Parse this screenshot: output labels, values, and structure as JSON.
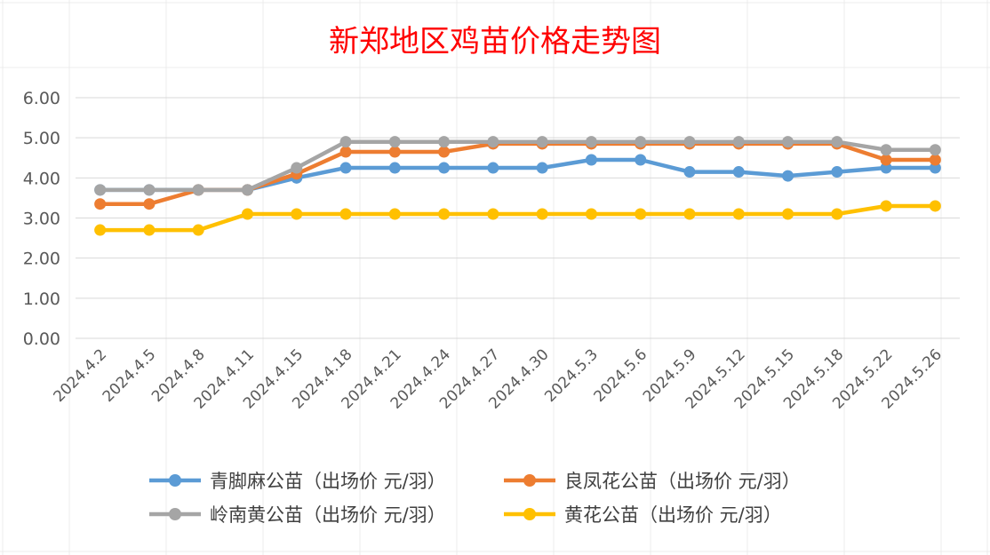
{
  "chart_data": {
    "type": "line",
    "title": "新郑地区鸡苗价格走势图",
    "xlabel": "",
    "ylabel": "",
    "ylim": [
      0,
      6
    ],
    "y_ticks": [
      "0.00",
      "1.00",
      "2.00",
      "3.00",
      "4.00",
      "5.00",
      "6.00"
    ],
    "grid": true,
    "legend_position": "bottom",
    "categories": [
      "2024.4.2",
      "2024.4.5",
      "2024.4.8",
      "2024.4.11",
      "2024.4.15",
      "2024.4.18",
      "2024.4.21",
      "2024.4.24",
      "2024.4.27",
      "2024.4.30",
      "2024.5.3",
      "2024.5.6",
      "2024.5.9",
      "2024.5.12",
      "2024.5.15",
      "2024.5.18",
      "2024.5.22",
      "2024.5.26"
    ],
    "series": [
      {
        "name": "青脚麻公苗（出场价 元/羽）",
        "color": "#5b9bd5",
        "values": [
          3.7,
          3.7,
          3.7,
          3.7,
          4.0,
          4.25,
          4.25,
          4.25,
          4.25,
          4.25,
          4.45,
          4.45,
          4.15,
          4.15,
          4.05,
          4.15,
          4.25,
          4.25
        ]
      },
      {
        "name": "良凤花公苗（出场价 元/羽）",
        "color": "#ed7d31",
        "values": [
          3.35,
          3.35,
          3.7,
          3.7,
          4.1,
          4.65,
          4.65,
          4.65,
          4.85,
          4.85,
          4.85,
          4.85,
          4.85,
          4.85,
          4.85,
          4.85,
          4.45,
          4.45
        ]
      },
      {
        "name": "岭南黄公苗（出场价 元/羽）",
        "color": "#a5a5a5",
        "values": [
          3.7,
          3.7,
          3.7,
          3.7,
          4.25,
          4.9,
          4.9,
          4.9,
          4.9,
          4.9,
          4.9,
          4.9,
          4.9,
          4.9,
          4.9,
          4.9,
          4.7,
          4.7
        ]
      },
      {
        "name": "黄花公苗（出场价 元/羽）",
        "color": "#ffc000",
        "values": [
          2.7,
          2.7,
          2.7,
          3.1,
          3.1,
          3.1,
          3.1,
          3.1,
          3.1,
          3.1,
          3.1,
          3.1,
          3.1,
          3.1,
          3.1,
          3.1,
          3.3,
          3.3
        ]
      }
    ],
    "colors": {
      "gridline": "#d9d9d9",
      "title": "#ff0000",
      "tick_text": "#595959"
    }
  }
}
